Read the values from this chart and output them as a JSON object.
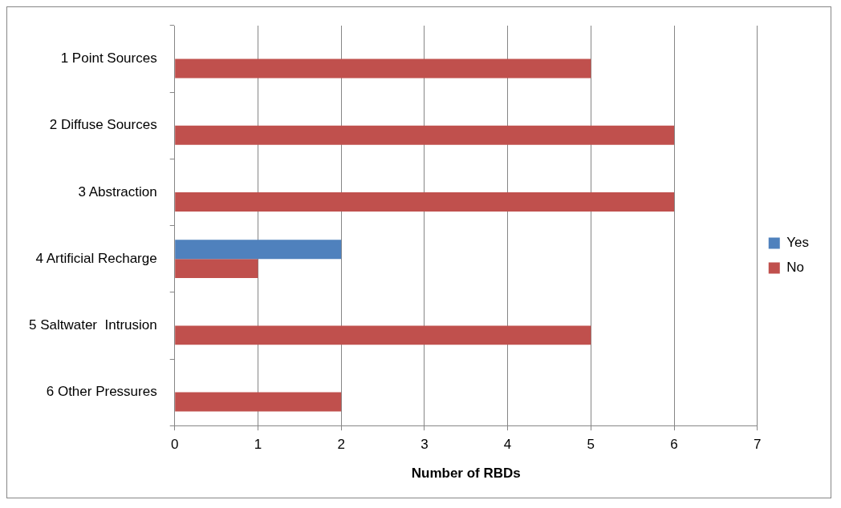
{
  "chart_data": {
    "type": "bar",
    "orientation": "horizontal",
    "categories": [
      "1 Point Sources",
      "2 Diffuse Sources",
      "3 Abstraction",
      "4 Artificial Recharge",
      "5 Saltwater  Intrusion",
      "6 Other Pressures"
    ],
    "series": [
      {
        "name": "Yes",
        "color": "#4f81bd",
        "values": [
          0,
          0,
          0,
          2,
          0,
          0
        ]
      },
      {
        "name": "No",
        "color": "#c0504d",
        "values": [
          5,
          6,
          6,
          1,
          5,
          2
        ]
      }
    ],
    "xlabel": "Number of RBDs",
    "xlim": [
      0,
      7
    ],
    "xticks": [
      0,
      1,
      2,
      3,
      4,
      5,
      6,
      7
    ],
    "grid": "x",
    "legend": "right"
  }
}
